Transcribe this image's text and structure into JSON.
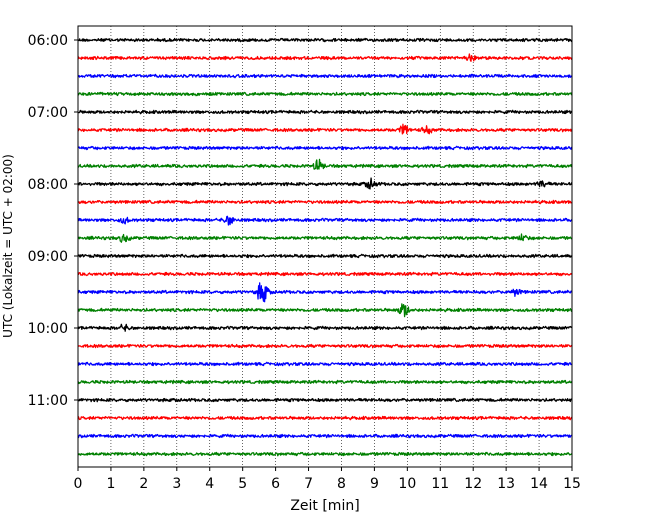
{
  "chart_data": {
    "type": "line",
    "title": "",
    "xlabel": "Zeit  [min]",
    "ylabel": "UTC (Lokalzeit = UTC + 02:00)",
    "xlim": [
      0,
      15
    ],
    "x_ticks": [
      "0",
      "1",
      "2",
      "3",
      "4",
      "5",
      "6",
      "7",
      "8",
      "9",
      "10",
      "11",
      "12",
      "13",
      "14",
      "15"
    ],
    "y_ticks": [
      "06:00",
      "07:00",
      "08:00",
      "09:00",
      "10:00",
      "11:00"
    ],
    "y_tick_traces": [
      0,
      4,
      8,
      12,
      16,
      20
    ],
    "trace_interval_min": 15,
    "grid": "vertical dotted",
    "colors": [
      "#000000",
      "#ff0000",
      "#0000ff",
      "#008000"
    ],
    "traces": [
      {
        "start": "06:00",
        "color": "#000000",
        "events": []
      },
      {
        "start": "06:15",
        "color": "#ff0000",
        "events": [
          {
            "t": 11.9,
            "amp": 1.6
          }
        ]
      },
      {
        "start": "06:30",
        "color": "#0000ff",
        "events": []
      },
      {
        "start": "06:45",
        "color": "#008000",
        "events": []
      },
      {
        "start": "07:00",
        "color": "#000000",
        "events": []
      },
      {
        "start": "07:15",
        "color": "#ff0000",
        "events": [
          {
            "t": 9.9,
            "amp": 2.5
          },
          {
            "t": 10.6,
            "amp": 1.6
          }
        ]
      },
      {
        "start": "07:30",
        "color": "#0000ff",
        "events": []
      },
      {
        "start": "07:45",
        "color": "#008000",
        "events": [
          {
            "t": 7.3,
            "amp": 2.8
          }
        ]
      },
      {
        "start": "08:00",
        "color": "#000000",
        "events": [
          {
            "t": 8.9,
            "amp": 2.4
          },
          {
            "t": 14.1,
            "amp": 1.6
          }
        ]
      },
      {
        "start": "08:15",
        "color": "#ff0000",
        "events": []
      },
      {
        "start": "08:30",
        "color": "#0000ff",
        "events": [
          {
            "t": 4.6,
            "amp": 2.4
          },
          {
            "t": 1.4,
            "amp": 1.3
          }
        ]
      },
      {
        "start": "08:45",
        "color": "#008000",
        "events": [
          {
            "t": 1.4,
            "amp": 2.0
          },
          {
            "t": 13.5,
            "amp": 1.6
          }
        ]
      },
      {
        "start": "09:00",
        "color": "#000000",
        "events": []
      },
      {
        "start": "09:15",
        "color": "#ff0000",
        "events": []
      },
      {
        "start": "09:30",
        "color": "#0000ff",
        "events": [
          {
            "t": 5.6,
            "amp": 6.0
          },
          {
            "t": 13.3,
            "amp": 1.5
          }
        ]
      },
      {
        "start": "09:45",
        "color": "#008000",
        "events": [
          {
            "t": 9.9,
            "amp": 3.5
          }
        ]
      },
      {
        "start": "10:00",
        "color": "#000000",
        "events": [
          {
            "t": 1.4,
            "amp": 1.4
          }
        ]
      },
      {
        "start": "10:15",
        "color": "#ff0000",
        "events": []
      },
      {
        "start": "10:30",
        "color": "#0000ff",
        "events": []
      },
      {
        "start": "10:45",
        "color": "#008000",
        "events": []
      },
      {
        "start": "11:00",
        "color": "#000000",
        "events": []
      },
      {
        "start": "11:15",
        "color": "#ff0000",
        "events": []
      },
      {
        "start": "11:30",
        "color": "#0000ff",
        "events": []
      },
      {
        "start": "11:45",
        "color": "#008000",
        "events": []
      }
    ]
  }
}
